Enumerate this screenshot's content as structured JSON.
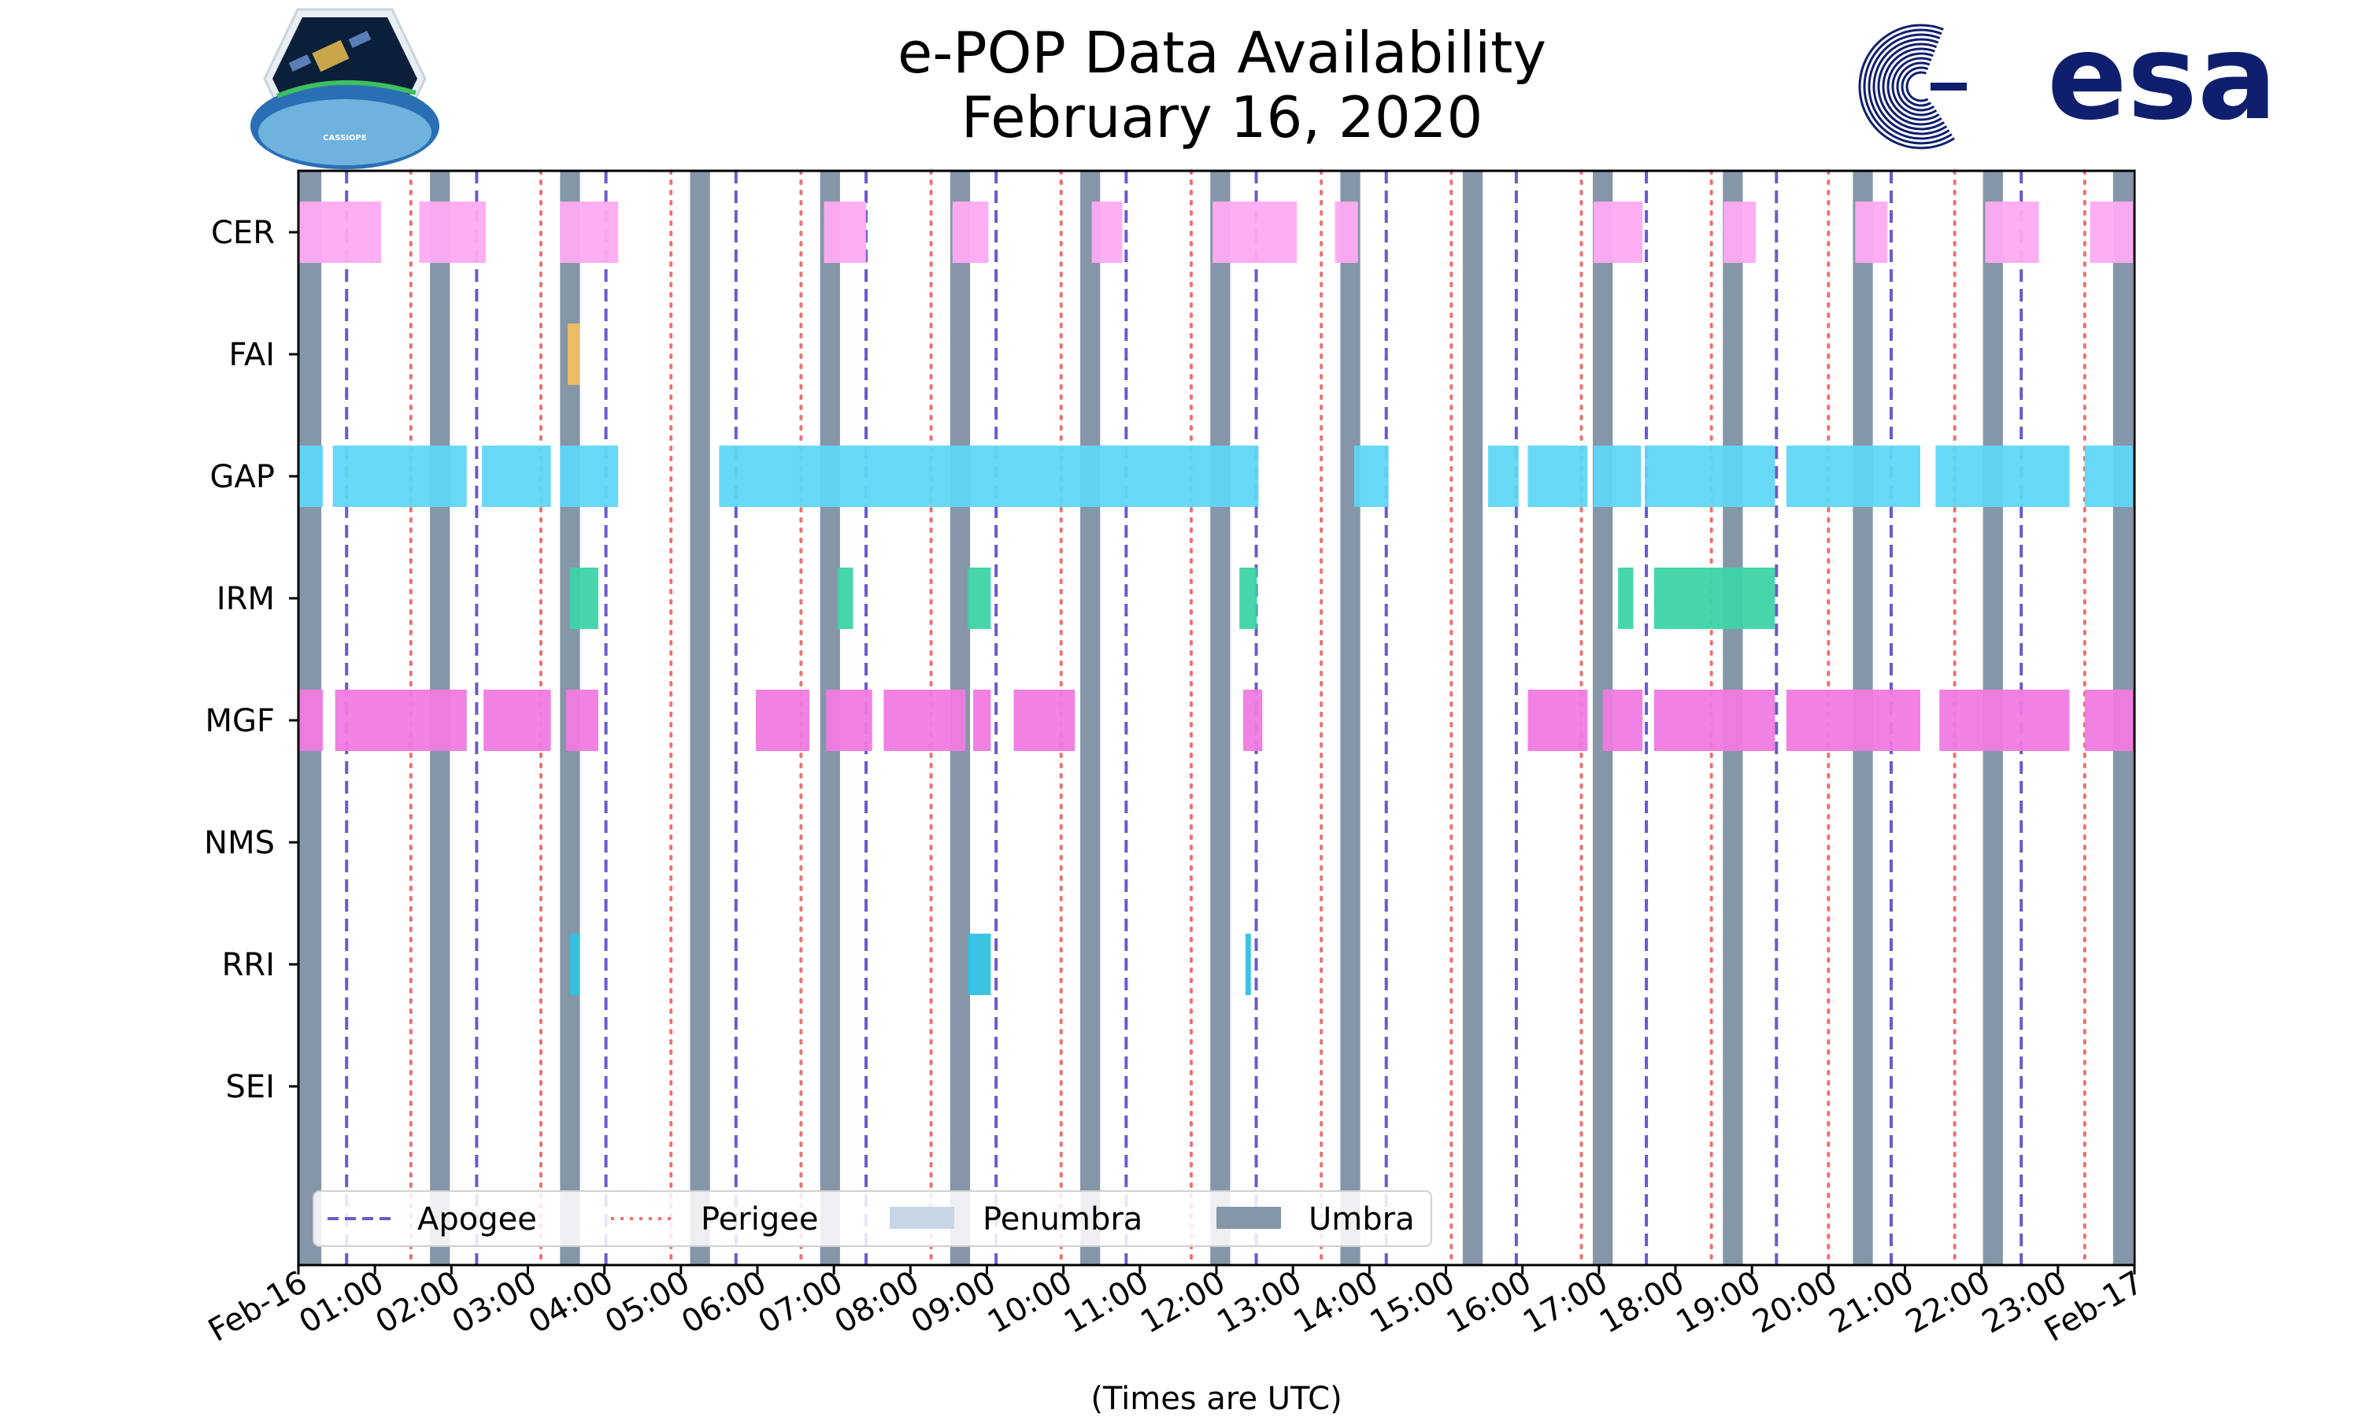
{
  "chart_data": {
    "type": "timeline",
    "title": "e-POP Data Availability",
    "subtitle": "February 16, 2020",
    "xlabel": "(Times are UTC)",
    "x_range_hours": [
      0,
      24
    ],
    "x_tick_labels": [
      "Feb-16",
      "01:00",
      "02:00",
      "03:00",
      "04:00",
      "05:00",
      "06:00",
      "07:00",
      "08:00",
      "09:00",
      "10:00",
      "11:00",
      "12:00",
      "13:00",
      "14:00",
      "15:00",
      "16:00",
      "17:00",
      "18:00",
      "19:00",
      "20:00",
      "21:00",
      "22:00",
      "23:00",
      "Feb-17"
    ],
    "instruments": [
      "CER",
      "FAI",
      "GAP",
      "IRM",
      "MGF",
      "NMS",
      "RRI",
      "SEI"
    ],
    "colors": {
      "CER": "#ffaaf2",
      "FAI": "#f0c060",
      "GAP": "#5fd6f5",
      "IRM": "#3dd4a8",
      "MGF": "#f07ae0",
      "NMS": "#cccccc",
      "RRI": "#30c0e0",
      "SEI": "#cccccc",
      "apogee": "#6a5acd",
      "perigee": "#f07070",
      "penumbra": "#c6d6e6",
      "umbra": "#8596a8"
    },
    "availability": {
      "CER": [
        [
          0.0,
          1.08
        ],
        [
          1.58,
          2.45
        ],
        [
          3.42,
          4.18
        ],
        [
          6.87,
          7.42
        ],
        [
          8.55,
          9.02
        ],
        [
          10.37,
          10.77
        ],
        [
          11.95,
          13.05
        ],
        [
          13.55,
          13.85
        ],
        [
          16.93,
          17.57
        ],
        [
          18.63,
          19.05
        ],
        [
          20.35,
          20.77
        ],
        [
          22.05,
          22.75
        ],
        [
          23.42,
          24.0
        ]
      ],
      "FAI": [
        [
          3.52,
          3.68
        ]
      ],
      "GAP": [
        [
          0.0,
          0.32
        ],
        [
          0.45,
          2.2
        ],
        [
          2.4,
          3.3
        ],
        [
          3.42,
          4.18
        ],
        [
          5.5,
          12.55
        ],
        [
          13.8,
          14.25
        ],
        [
          15.55,
          15.95
        ],
        [
          16.07,
          16.85
        ],
        [
          16.93,
          17.55
        ],
        [
          17.6,
          19.3
        ],
        [
          19.45,
          21.2
        ],
        [
          21.4,
          23.15
        ],
        [
          23.35,
          24.0
        ]
      ],
      "IRM": [
        [
          3.55,
          3.92
        ],
        [
          7.05,
          7.25
        ],
        [
          8.75,
          9.05
        ],
        [
          12.3,
          12.53
        ],
        [
          17.25,
          17.45
        ],
        [
          17.72,
          19.3
        ]
      ],
      "MGF": [
        [
          0.0,
          0.32
        ],
        [
          0.48,
          2.2
        ],
        [
          2.42,
          3.3
        ],
        [
          3.5,
          3.92
        ],
        [
          5.98,
          6.68
        ],
        [
          6.9,
          7.5
        ],
        [
          7.65,
          8.72
        ],
        [
          8.82,
          9.05
        ],
        [
          9.35,
          10.15
        ],
        [
          12.35,
          12.6
        ],
        [
          16.07,
          16.85
        ],
        [
          17.05,
          17.57
        ],
        [
          17.72,
          19.3
        ],
        [
          19.45,
          21.2
        ],
        [
          21.45,
          23.15
        ],
        [
          23.35,
          24.0
        ]
      ],
      "NMS": [],
      "RRI": [
        [
          3.55,
          3.68
        ],
        [
          8.75,
          9.05
        ],
        [
          12.38,
          12.45
        ]
      ],
      "SEI": []
    },
    "umbra": [
      [
        0.0,
        0.3
      ],
      [
        1.72,
        1.98
      ],
      [
        3.42,
        3.68
      ],
      [
        5.12,
        5.38
      ],
      [
        6.82,
        7.08
      ],
      [
        8.52,
        8.78
      ],
      [
        10.22,
        10.48
      ],
      [
        11.92,
        12.18
      ],
      [
        13.62,
        13.88
      ],
      [
        15.22,
        15.48
      ],
      [
        16.92,
        17.18
      ],
      [
        18.62,
        18.88
      ],
      [
        20.32,
        20.58
      ],
      [
        22.02,
        22.28
      ],
      [
        23.72,
        23.98
      ]
    ],
    "apogee": [
      0.63,
      2.33,
      4.02,
      5.72,
      7.42,
      9.12,
      10.82,
      12.52,
      14.22,
      15.92,
      17.62,
      19.32,
      20.82,
      22.52
    ],
    "perigee": [
      1.47,
      3.17,
      4.87,
      6.57,
      8.27,
      9.97,
      11.67,
      13.37,
      15.07,
      16.77,
      18.47,
      20.0,
      21.65,
      23.35
    ],
    "legend": [
      {
        "key": "apogee",
        "label": "Apogee",
        "style": "dashed"
      },
      {
        "key": "perigee",
        "label": "Perigee",
        "style": "dotted"
      },
      {
        "key": "penumbra",
        "label": "Penumbra",
        "style": "patch"
      },
      {
        "key": "umbra",
        "label": "Umbra",
        "style": "patch"
      }
    ],
    "legend_position": "lower-center"
  },
  "logos": {
    "left": "CASSIOPE",
    "right": "esa"
  }
}
